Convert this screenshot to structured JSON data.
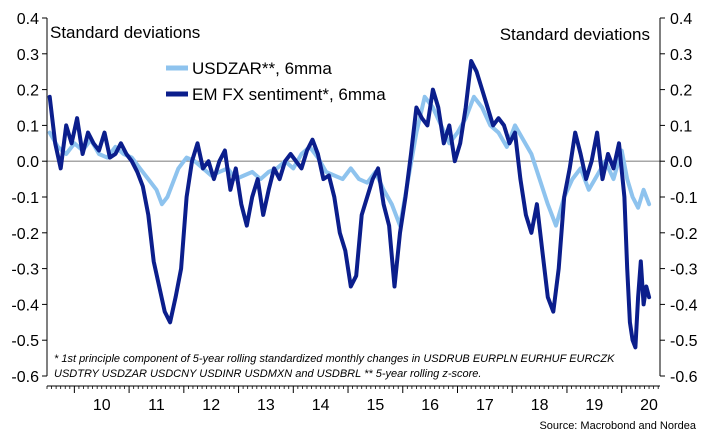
{
  "chart_data": {
    "type": "line",
    "y_unit_left": "Standard deviations",
    "y_unit_right": "Standard deviations",
    "ylim": [
      -0.6,
      0.4
    ],
    "yticks": [
      0.4,
      0.3,
      0.2,
      0.1,
      0.0,
      -0.1,
      -0.2,
      -0.3,
      -0.4,
      -0.5,
      -0.6
    ],
    "ytick_labels": [
      "0.4",
      "0.3",
      "0.2",
      "0.1",
      "0.0",
      "-0.1",
      "-0.2",
      "-0.3",
      "-0.4",
      "-0.5",
      "-0.6"
    ],
    "xlim": [
      2009.5,
      2020.7
    ],
    "xticks": [
      2010,
      2011,
      2012,
      2013,
      2014,
      2015,
      2016,
      2017,
      2018,
      2019,
      2020
    ],
    "xtick_labels": [
      "10",
      "11",
      "12",
      "13",
      "14",
      "15",
      "16",
      "17",
      "18",
      "19",
      "20"
    ],
    "zero_line": true,
    "legend_position": "top-left",
    "series": [
      {
        "name": "USDZAR**, 6mma",
        "color": "#8EC3EE",
        "x": [
          2009.55,
          2009.7,
          2009.85,
          2010.0,
          2010.15,
          2010.3,
          2010.45,
          2010.6,
          2010.75,
          2010.9,
          2011.05,
          2011.2,
          2011.35,
          2011.5,
          2011.6,
          2011.7,
          2011.8,
          2011.9,
          2012.05,
          2012.2,
          2012.35,
          2012.5,
          2012.65,
          2012.8,
          2012.95,
          2013.1,
          2013.25,
          2013.4,
          2013.55,
          2013.7,
          2013.85,
          2014.0,
          2014.15,
          2014.3,
          2014.45,
          2014.6,
          2014.75,
          2014.9,
          2015.05,
          2015.2,
          2015.35,
          2015.5,
          2015.65,
          2015.8,
          2015.95,
          2016.1,
          2016.25,
          2016.4,
          2016.55,
          2016.7,
          2016.85,
          2017.0,
          2017.15,
          2017.3,
          2017.45,
          2017.6,
          2017.75,
          2017.9,
          2018.05,
          2018.2,
          2018.35,
          2018.5,
          2018.65,
          2018.8,
          2018.95,
          2019.1,
          2019.25,
          2019.4,
          2019.55,
          2019.7,
          2019.85,
          2020.0,
          2020.1,
          2020.2,
          2020.3,
          2020.4,
          2020.5
        ],
        "y": [
          0.08,
          0.04,
          0.02,
          0.05,
          0.03,
          0.06,
          0.02,
          0.01,
          0.04,
          0.02,
          0.01,
          -0.02,
          -0.05,
          -0.08,
          -0.12,
          -0.1,
          -0.06,
          -0.02,
          0.01,
          0.0,
          -0.02,
          -0.04,
          -0.03,
          -0.02,
          -0.05,
          -0.04,
          -0.03,
          -0.05,
          -0.03,
          -0.02,
          0.0,
          -0.02,
          0.02,
          0.04,
          0.01,
          -0.03,
          -0.04,
          -0.05,
          -0.02,
          -0.05,
          -0.06,
          -0.03,
          -0.08,
          -0.12,
          -0.18,
          -0.05,
          0.08,
          0.18,
          0.15,
          0.1,
          0.05,
          0.08,
          0.12,
          0.18,
          0.15,
          0.1,
          0.08,
          0.04,
          0.1,
          0.06,
          0.02,
          -0.05,
          -0.12,
          -0.18,
          -0.1,
          -0.05,
          -0.02,
          -0.08,
          -0.04,
          0.0,
          -0.05,
          0.03,
          -0.05,
          -0.1,
          -0.13,
          -0.08,
          -0.12
        ]
      },
      {
        "name": "EM FX sentiment*, 6mma",
        "color": "#0B1E8C",
        "x": [
          2009.55,
          2009.65,
          2009.75,
          2009.85,
          2009.95,
          2010.05,
          2010.15,
          2010.25,
          2010.35,
          2010.45,
          2010.55,
          2010.65,
          2010.75,
          2010.85,
          2010.95,
          2011.05,
          2011.15,
          2011.25,
          2011.35,
          2011.45,
          2011.55,
          2011.65,
          2011.75,
          2011.85,
          2011.95,
          2012.05,
          2012.15,
          2012.25,
          2012.35,
          2012.45,
          2012.55,
          2012.65,
          2012.75,
          2012.85,
          2012.95,
          2013.05,
          2013.15,
          2013.25,
          2013.35,
          2013.45,
          2013.55,
          2013.65,
          2013.75,
          2013.85,
          2013.95,
          2014.05,
          2014.15,
          2014.25,
          2014.35,
          2014.45,
          2014.55,
          2014.65,
          2014.75,
          2014.85,
          2014.95,
          2015.05,
          2015.15,
          2015.25,
          2015.35,
          2015.45,
          2015.55,
          2015.65,
          2015.75,
          2015.85,
          2015.95,
          2016.05,
          2016.15,
          2016.25,
          2016.35,
          2016.45,
          2016.55,
          2016.65,
          2016.75,
          2016.85,
          2016.95,
          2017.05,
          2017.15,
          2017.25,
          2017.35,
          2017.45,
          2017.55,
          2017.65,
          2017.75,
          2017.85,
          2017.95,
          2018.05,
          2018.15,
          2018.25,
          2018.35,
          2018.45,
          2018.55,
          2018.65,
          2018.75,
          2018.85,
          2018.95,
          2019.05,
          2019.15,
          2019.25,
          2019.35,
          2019.45,
          2019.55,
          2019.65,
          2019.75,
          2019.85,
          2019.95,
          2020.05,
          2020.1,
          2020.15,
          2020.2,
          2020.25,
          2020.3,
          2020.35,
          2020.4,
          2020.45,
          2020.5
        ],
        "y": [
          0.18,
          0.05,
          -0.02,
          0.1,
          0.05,
          0.12,
          0.02,
          0.08,
          0.05,
          0.03,
          0.08,
          0.01,
          0.02,
          0.05,
          0.02,
          0.0,
          -0.03,
          -0.07,
          -0.15,
          -0.28,
          -0.35,
          -0.42,
          -0.45,
          -0.38,
          -0.3,
          -0.1,
          0.0,
          0.05,
          -0.02,
          0.0,
          -0.05,
          0.0,
          0.03,
          -0.08,
          -0.02,
          -0.12,
          -0.18,
          -0.1,
          -0.05,
          -0.15,
          -0.08,
          -0.02,
          -0.05,
          0.0,
          0.02,
          0.0,
          -0.02,
          0.03,
          0.06,
          0.02,
          -0.05,
          -0.04,
          -0.1,
          -0.2,
          -0.25,
          -0.35,
          -0.32,
          -0.15,
          -0.1,
          -0.05,
          -0.02,
          -0.12,
          -0.18,
          -0.35,
          -0.2,
          -0.1,
          0.02,
          0.15,
          0.12,
          0.1,
          0.2,
          0.15,
          0.05,
          0.1,
          0.0,
          0.05,
          0.15,
          0.28,
          0.25,
          0.2,
          0.15,
          0.1,
          0.12,
          0.1,
          0.05,
          0.08,
          -0.05,
          -0.15,
          -0.2,
          -0.12,
          -0.25,
          -0.38,
          -0.42,
          -0.3,
          -0.1,
          -0.02,
          0.08,
          0.02,
          -0.05,
          0.0,
          0.08,
          -0.05,
          0.02,
          -0.02,
          0.05,
          -0.1,
          -0.3,
          -0.45,
          -0.5,
          -0.52,
          -0.38,
          -0.28,
          -0.4,
          -0.35,
          -0.38
        ]
      }
    ],
    "footnote_line1": "* 1st principle component of 5-year rolling standardized monthly changes in USDRUB EURPLN EURHUF EURCZK",
    "footnote_line2": "USDTRY USDZAR USDCNY USDINR USDMXN and USDBRL ** 5-year rolling z-score.",
    "source": "Source: Macrobond and Nordea"
  }
}
